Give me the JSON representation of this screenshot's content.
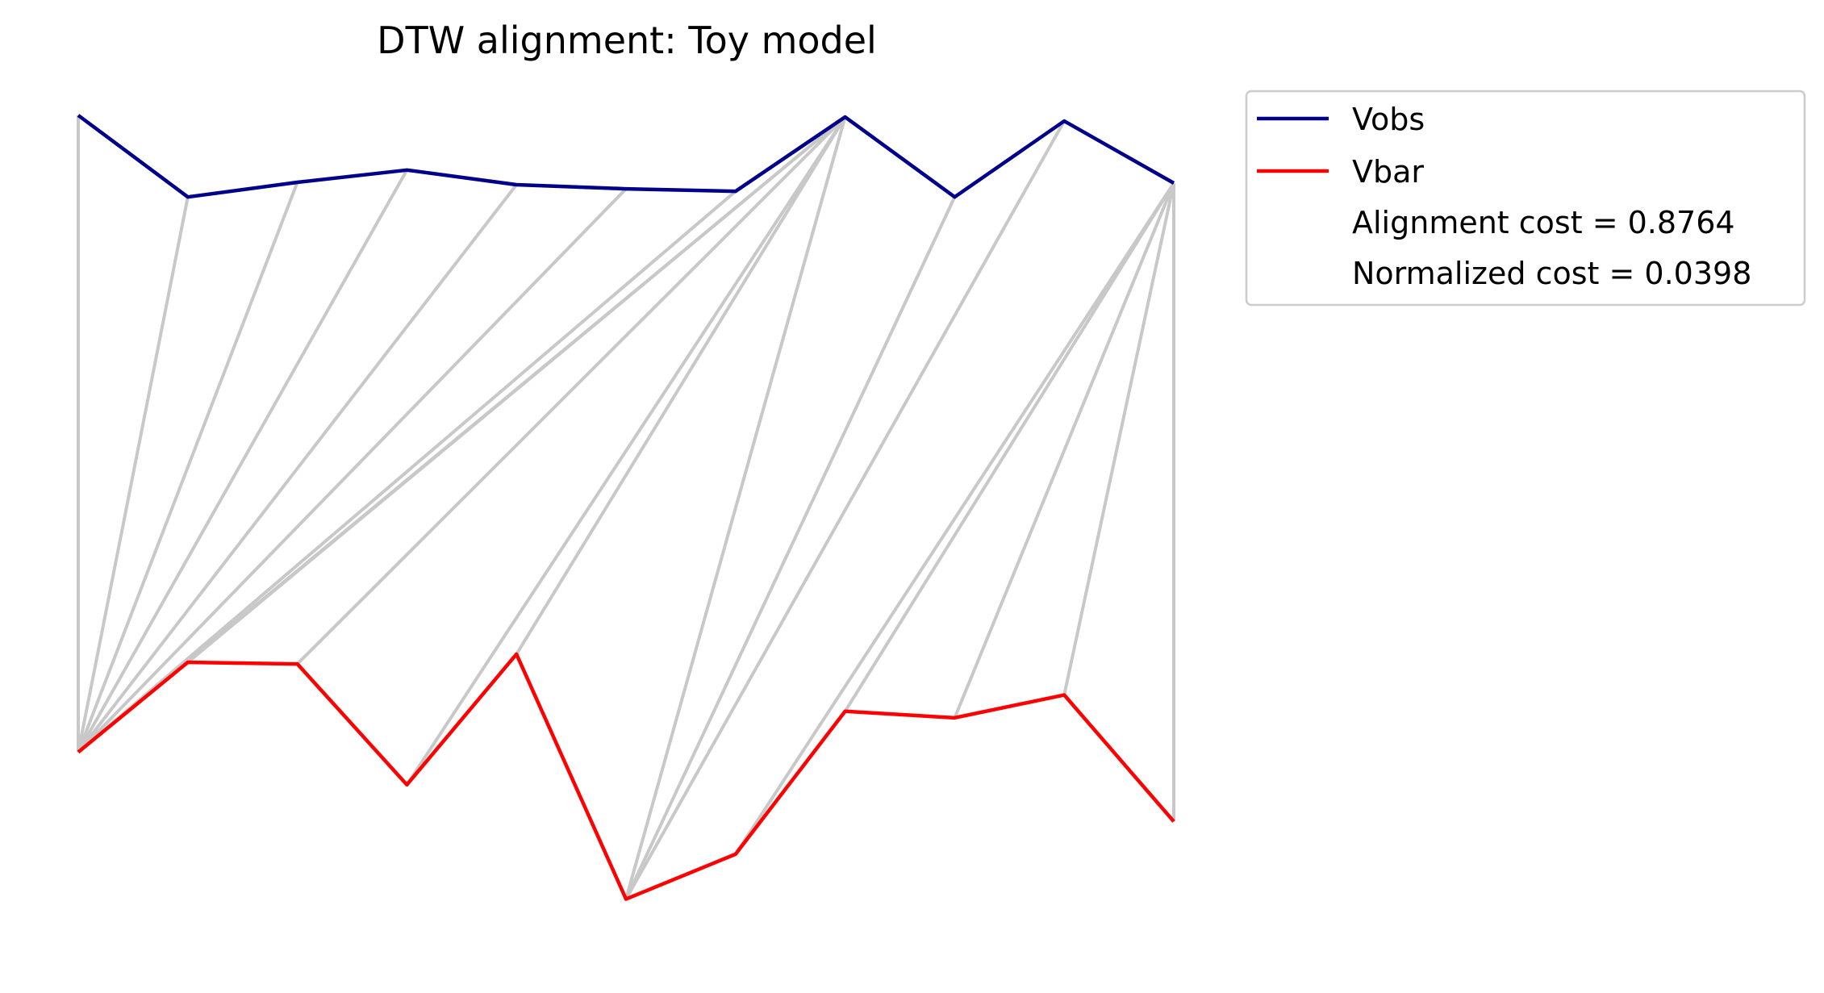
{
  "chart_data": {
    "type": "line",
    "title": "DTW alignment: Toy model",
    "xlabel": "",
    "ylabel": "",
    "axes_visible": false,
    "grid": false,
    "legend_position": "outside-top-right",
    "x": [
      0,
      1,
      2,
      3,
      4,
      5,
      6,
      7,
      8,
      9,
      10
    ],
    "ylim": [
      0,
      1
    ],
    "series": [
      {
        "name": "Vobs",
        "color": "#00008b",
        "values": [
          1.0,
          0.9,
          0.918,
          0.933,
          0.915,
          0.91,
          0.907,
          0.998,
          0.9,
          0.993,
          0.917
        ]
      },
      {
        "name": "Vbar",
        "color": "#ff0000",
        "values": [
          0.22,
          0.33,
          0.328,
          0.18,
          0.34,
          0.04,
          0.095,
          0.27,
          0.262,
          0.29,
          0.135
        ]
      }
    ],
    "alignment_color": "#c8c8c8",
    "alignment_path": [
      [
        0,
        0
      ],
      [
        1,
        0
      ],
      [
        2,
        0
      ],
      [
        3,
        0
      ],
      [
        4,
        0
      ],
      [
        5,
        0
      ],
      [
        6,
        0
      ],
      [
        7,
        0
      ],
      [
        7,
        1
      ],
      [
        7,
        2
      ],
      [
        7,
        3
      ],
      [
        7,
        4
      ],
      [
        7,
        5
      ],
      [
        8,
        5
      ],
      [
        9,
        5
      ],
      [
        10,
        6
      ],
      [
        10,
        7
      ],
      [
        10,
        8
      ],
      [
        10,
        9
      ],
      [
        10,
        10
      ]
    ],
    "legend_extra": [
      "Alignment cost = 0.8764",
      "Normalized cost = 0.0398"
    ]
  }
}
